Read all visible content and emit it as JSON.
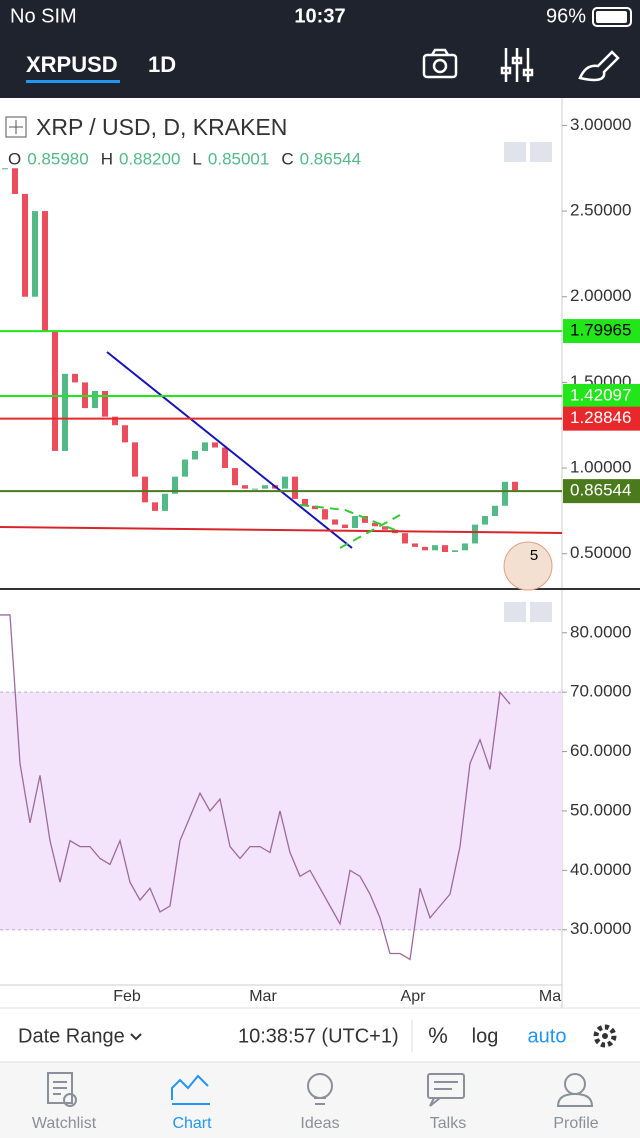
{
  "status_bar": {
    "carrier": "No SIM",
    "time": "10:37",
    "battery": "96%"
  },
  "header": {
    "symbol": "XRPUSD",
    "interval": "1D"
  },
  "price_chart": {
    "type": "candlestick",
    "legend": "XRP / USD, D, KRAKEN",
    "ohlc": [
      {
        "key": "O",
        "value": "0.85980"
      },
      {
        "key": "H",
        "value": "0.88200"
      },
      {
        "key": "L",
        "value": "0.85001"
      },
      {
        "key": "C",
        "value": "0.86544"
      }
    ],
    "closes": [
      2.75,
      2.6,
      2.0,
      2.5,
      1.8,
      1.1,
      1.55,
      1.5,
      1.35,
      1.45,
      1.3,
      1.25,
      1.15,
      0.95,
      0.8,
      0.75,
      0.85,
      0.95,
      1.05,
      1.1,
      1.15,
      1.12,
      1.0,
      0.9,
      0.88,
      0.88,
      0.9,
      0.88,
      0.95,
      0.82,
      0.78,
      0.76,
      0.7,
      0.67,
      0.65,
      0.72,
      0.68,
      0.66,
      0.64,
      0.62,
      0.56,
      0.54,
      0.52,
      0.55,
      0.51,
      0.52,
      0.56,
      0.67,
      0.72,
      0.78,
      0.92,
      0.87
    ],
    "up_color": "#53b987",
    "down_color": "#eb4d5c",
    "ylim": [
      0.3,
      3.16
    ],
    "yticks": [
      {
        "value": 3,
        "label": "3.00000"
      },
      {
        "value": 2.5,
        "label": "2.50000"
      },
      {
        "value": 2,
        "label": "2.00000"
      },
      {
        "value": 1.5,
        "label": "1.50000"
      },
      {
        "value": 1,
        "label": "1.00000"
      },
      {
        "value": 0.5,
        "label": "0.50000"
      }
    ],
    "levels": [
      {
        "value": 1.79965,
        "color": "#22e61a"
      },
      {
        "value": 1.42097,
        "color": "#22e61a"
      },
      {
        "value": 1.28846,
        "color": "#e8282b"
      },
      {
        "value": 0.86544,
        "color": "#4a7a1c"
      }
    ],
    "badge": "5"
  },
  "rsi_chart": {
    "type": "line",
    "values": [
      83,
      83,
      58,
      48,
      56,
      45,
      38,
      45,
      44,
      44,
      42,
      41,
      45,
      38,
      35,
      37,
      33,
      34,
      45,
      49,
      53,
      50,
      52,
      44,
      42,
      44,
      44,
      43,
      50,
      43,
      39,
      40,
      37,
      34,
      31,
      40,
      39,
      36,
      32,
      26,
      26,
      25,
      37,
      32,
      34,
      36,
      44,
      58,
      62,
      57,
      70,
      68
    ],
    "color": "#9c6b9c",
    "ylim": [
      20.7,
      87.2
    ],
    "yticks": [
      {
        "value": 80,
        "label": "80.0000"
      },
      {
        "value": 70,
        "label": "70.0000"
      },
      {
        "value": 60,
        "label": "60.0000"
      },
      {
        "value": 50,
        "label": "50.0000"
      },
      {
        "value": 40,
        "label": "40.0000"
      },
      {
        "value": 30,
        "label": "30.0000"
      }
    ],
    "band": [
      30,
      70
    ]
  },
  "x_axis": {
    "labels": [
      "Feb",
      "Mar",
      "Apr",
      "Ma"
    ]
  },
  "toolbar": {
    "date_range": "Date Range",
    "clock": "10:38:57 (UTC+1)",
    "percent": "%",
    "log": "log",
    "auto": "auto"
  },
  "tabs": [
    "Watchlist",
    "Chart",
    "Ideas",
    "Talks",
    "Profile"
  ]
}
